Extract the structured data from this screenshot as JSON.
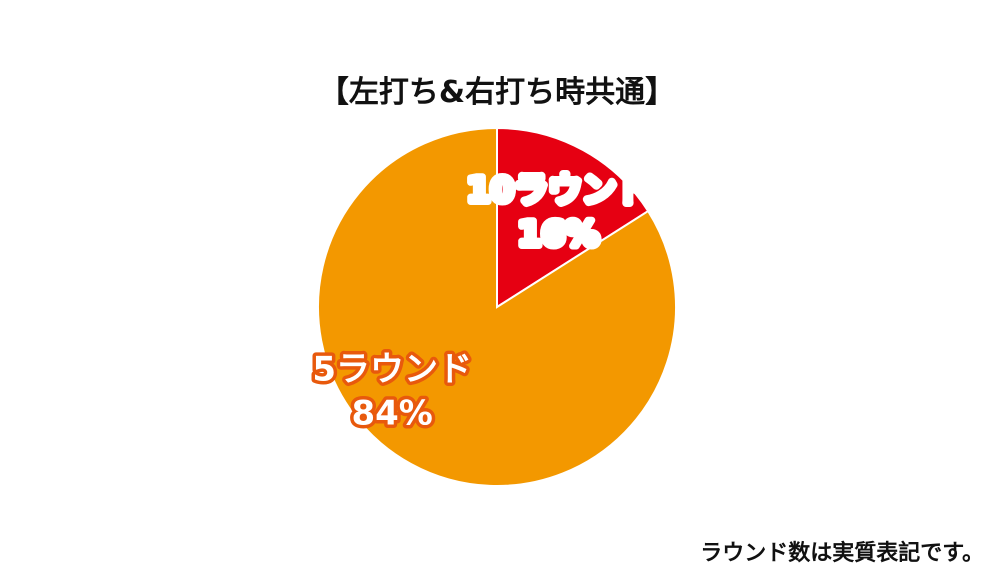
{
  "chart_data": {
    "type": "pie",
    "title": "【左打ち&右打ち時共通】",
    "slices": [
      {
        "label": "10ラウンド",
        "value": 16,
        "value_label": "16%",
        "color": "#e60012",
        "outline": "#ffffff"
      },
      {
        "label": "5ラウンド",
        "value": 84,
        "value_label": "84%",
        "color": "#f39800",
        "outline": "#e8590c"
      }
    ],
    "start": "12 o'clock",
    "direction": "clockwise"
  },
  "footnote": "ラウンド数は実質表記です。"
}
